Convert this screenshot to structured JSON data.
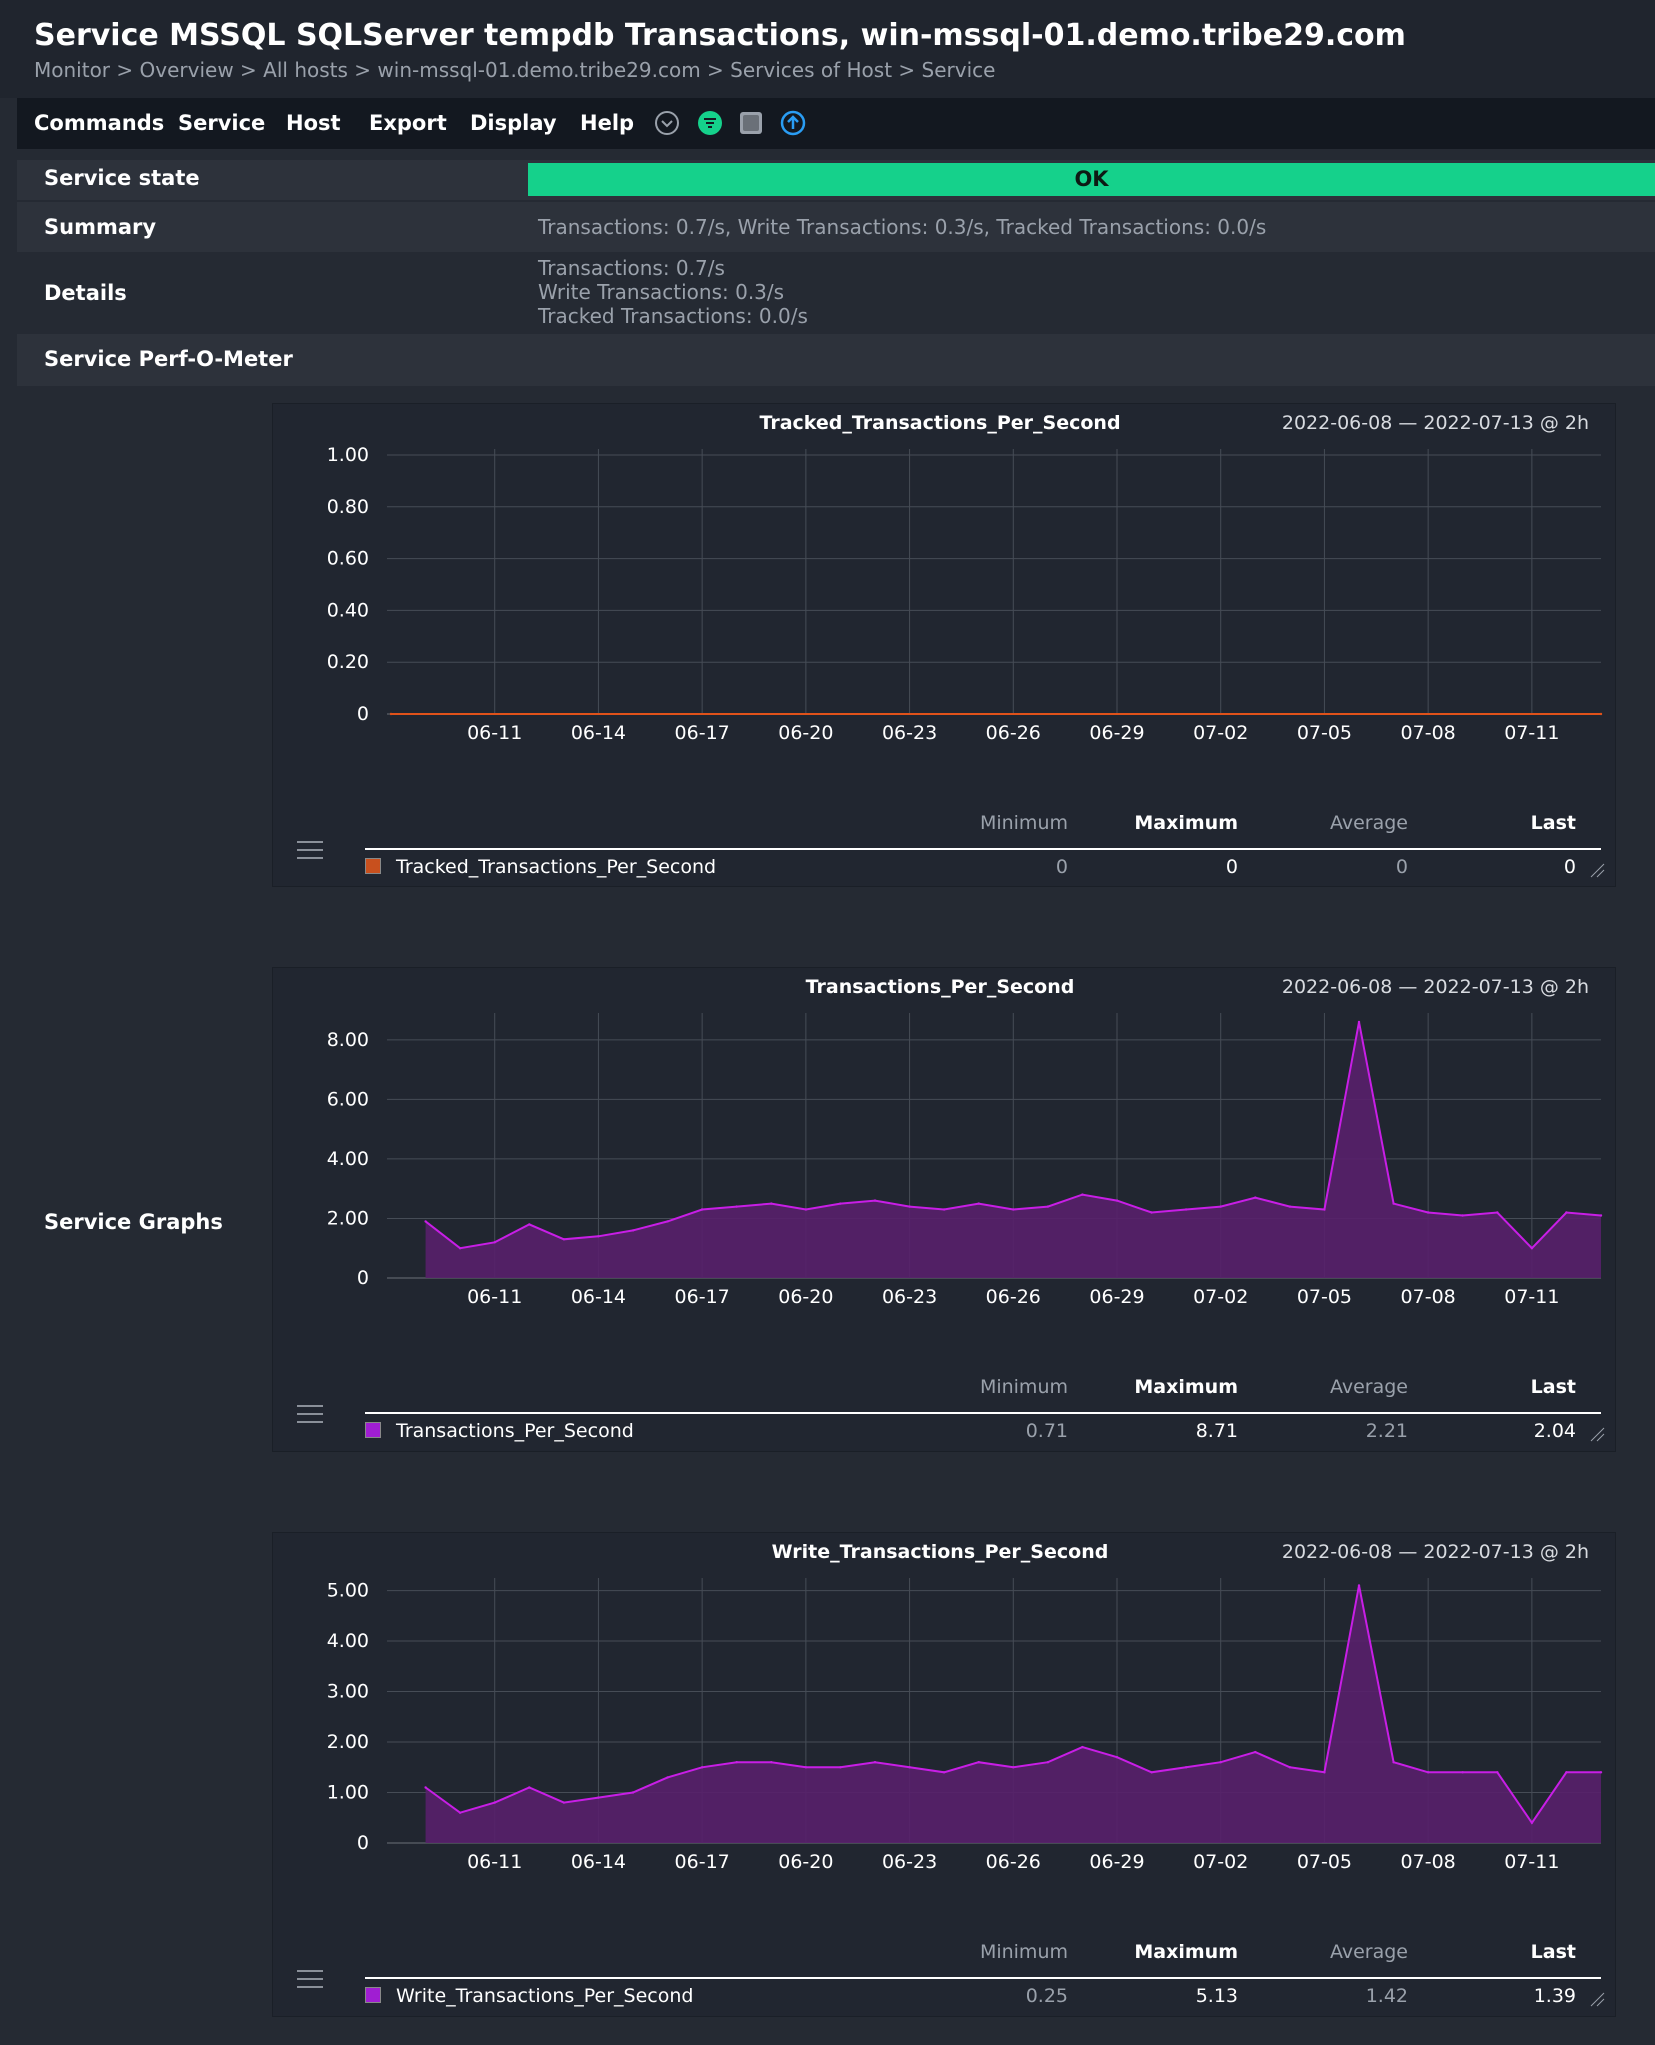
{
  "header": {
    "title": "Service MSSQL SQLServer tempdb Transactions, win-mssql-01.demo.tribe29.com",
    "breadcrumb": [
      "Monitor",
      "Overview",
      "All hosts",
      "win-mssql-01.demo.tribe29.com",
      "Services of Host",
      "Service"
    ],
    "separator": " > "
  },
  "menu": [
    "Commands",
    "Service",
    "Host",
    "Export",
    "Display",
    "Help"
  ],
  "toolbar_icons": [
    "chevron-down-circle-icon",
    "filter-icon",
    "checkbox-icon",
    "upload-arrow-icon"
  ],
  "service": {
    "state_label": "Service state",
    "state": "OK",
    "state_color": "#15d18b",
    "summary_label": "Summary",
    "summary": "Transactions: 0.7/s, Write Transactions: 0.3/s, Tracked Transactions: 0.0/s",
    "details_label": "Details",
    "details": [
      "Transactions: 0.7/s",
      "Write Transactions: 0.3/s",
      "Tracked Transactions: 0.0/s"
    ],
    "perfometer_label": "Service Perf-O-Meter",
    "graphs_label": "Service Graphs"
  },
  "legend_headers": [
    "Minimum",
    "Maximum",
    "Average",
    "Last"
  ],
  "graphs": [
    {
      "title": "Tracked_Transactions_Per_Second",
      "range": "2022-06-08 — 2022-07-13 @ 2h",
      "legend": {
        "name": "Tracked_Transactions_Per_Second",
        "color": "#c8501e",
        "min": "0",
        "max": "0",
        "avg": "0",
        "last": "0"
      }
    },
    {
      "title": "Transactions_Per_Second",
      "range": "2022-06-08 — 2022-07-13 @ 2h",
      "legend": {
        "name": "Transactions_Per_Second",
        "color": "#a01ed2",
        "min": "0.71",
        "max": "8.71",
        "avg": "2.21",
        "last": "2.04"
      }
    },
    {
      "title": "Write_Transactions_Per_Second",
      "range": "2022-06-08 — 2022-07-13 @ 2h",
      "legend": {
        "name": "Write_Transactions_Per_Second",
        "color": "#a01ed2",
        "min": "0.25",
        "max": "5.13",
        "avg": "1.42",
        "last": "1.39"
      }
    }
  ],
  "chart_data": [
    {
      "type": "line",
      "title": "Tracked_Transactions_Per_Second",
      "x_ticks": [
        "06-11",
        "06-14",
        "06-17",
        "06-20",
        "06-23",
        "06-26",
        "06-29",
        "07-02",
        "07-05",
        "07-08",
        "07-11"
      ],
      "y_ticks": [
        "1.00",
        "0.80",
        "0.60",
        "0.40",
        "0.20",
        "0"
      ],
      "ylim": [
        0,
        1
      ],
      "xlim": [
        "2022-06-08",
        "2022-07-13"
      ],
      "grid": true,
      "series": [
        {
          "name": "Tracked_Transactions_Per_Second",
          "color": "#e0521a",
          "x": [
            "2022-06-08",
            "2022-07-13"
          ],
          "values": [
            0,
            0
          ]
        }
      ]
    },
    {
      "type": "area",
      "title": "Transactions_Per_Second",
      "x_ticks": [
        "06-11",
        "06-14",
        "06-17",
        "06-20",
        "06-23",
        "06-26",
        "06-29",
        "07-02",
        "07-05",
        "07-08",
        "07-11"
      ],
      "y_ticks": [
        "8.00",
        "6.00",
        "4.00",
        "2.00",
        "0"
      ],
      "ylim": [
        0,
        8.7
      ],
      "xlim": [
        "2022-06-08",
        "2022-07-13"
      ],
      "grid": true,
      "series": [
        {
          "name": "Transactions_Per_Second",
          "color": "#c81ee6",
          "fill": "#58206b",
          "x": [
            "06-09",
            "06-10",
            "06-11",
            "06-12",
            "06-13",
            "06-14",
            "06-15",
            "06-16",
            "06-17",
            "06-18",
            "06-19",
            "06-20",
            "06-21",
            "06-22",
            "06-23",
            "06-24",
            "06-25",
            "06-26",
            "06-27",
            "06-28",
            "06-29",
            "06-30",
            "07-01",
            "07-02",
            "07-03",
            "07-04",
            "07-05",
            "07-06",
            "07-07",
            "07-08",
            "07-09",
            "07-10",
            "07-11",
            "07-12",
            "07-13"
          ],
          "values": [
            1.9,
            1.0,
            1.2,
            1.8,
            1.3,
            1.4,
            1.6,
            1.9,
            2.3,
            2.4,
            2.5,
            2.3,
            2.5,
            2.6,
            2.4,
            2.3,
            2.5,
            2.3,
            2.4,
            2.8,
            2.6,
            2.2,
            2.3,
            2.4,
            2.7,
            2.4,
            2.3,
            8.6,
            2.5,
            2.2,
            2.1,
            2.2,
            1.0,
            2.2,
            2.1
          ]
        }
      ]
    },
    {
      "type": "area",
      "title": "Write_Transactions_Per_Second",
      "x_ticks": [
        "06-11",
        "06-14",
        "06-17",
        "06-20",
        "06-23",
        "06-26",
        "06-29",
        "07-02",
        "07-05",
        "07-08",
        "07-11"
      ],
      "y_ticks": [
        "5.00",
        "4.00",
        "3.00",
        "2.00",
        "1.00",
        "0"
      ],
      "ylim": [
        0,
        5.13
      ],
      "xlim": [
        "2022-06-08",
        "2022-07-13"
      ],
      "grid": true,
      "series": [
        {
          "name": "Write_Transactions_Per_Second",
          "color": "#c81ee6",
          "fill": "#58206b",
          "x": [
            "06-09",
            "06-10",
            "06-11",
            "06-12",
            "06-13",
            "06-14",
            "06-15",
            "06-16",
            "06-17",
            "06-18",
            "06-19",
            "06-20",
            "06-21",
            "06-22",
            "06-23",
            "06-24",
            "06-25",
            "06-26",
            "06-27",
            "06-28",
            "06-29",
            "06-30",
            "07-01",
            "07-02",
            "07-03",
            "07-04",
            "07-05",
            "07-06",
            "07-07",
            "07-08",
            "07-09",
            "07-10",
            "07-11",
            "07-12",
            "07-13"
          ],
          "values": [
            1.1,
            0.6,
            0.8,
            1.1,
            0.8,
            0.9,
            1.0,
            1.3,
            1.5,
            1.6,
            1.6,
            1.5,
            1.5,
            1.6,
            1.5,
            1.4,
            1.6,
            1.5,
            1.6,
            1.9,
            1.7,
            1.4,
            1.5,
            1.6,
            1.8,
            1.5,
            1.4,
            5.1,
            1.6,
            1.4,
            1.4,
            1.4,
            0.4,
            1.4,
            1.4
          ]
        }
      ]
    }
  ]
}
